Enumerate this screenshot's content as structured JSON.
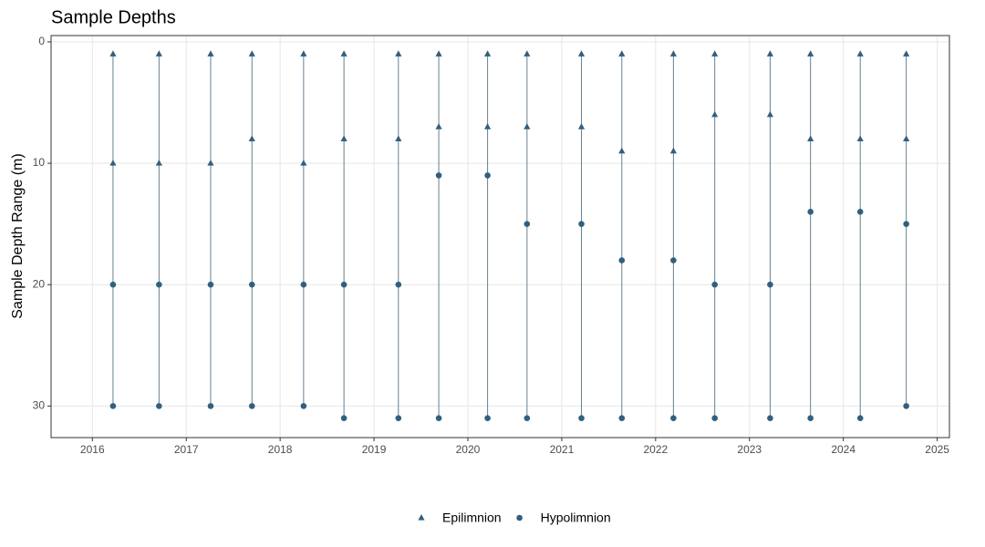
{
  "chart_data": {
    "type": "range-scatter",
    "title": "Sample Depths",
    "y_label": "Sample Depth Range (m)",
    "x": [
      2016.22,
      2016.22,
      2016.71,
      2016.71,
      2017.26,
      2017.26,
      2017.7,
      2017.7,
      2018.25,
      2018.25,
      2018.68,
      2018.68,
      2019.26,
      2019.26,
      2019.69,
      2019.69,
      2020.21,
      2020.21,
      2020.63,
      2020.63,
      2021.21,
      2021.21,
      2021.64,
      2021.64,
      2022.19,
      2022.19,
      2022.63,
      2022.63,
      2023.22,
      2023.22,
      2023.65,
      2023.65,
      2024.18,
      2024.18,
      2024.67,
      2024.67
    ],
    "series": [
      {
        "name": "Epilimnion",
        "color": "#31607f",
        "shape": "triangle",
        "values": [
          1,
          10,
          1,
          10,
          1,
          10,
          1,
          8,
          1,
          10,
          1,
          8,
          1,
          8,
          1,
          7,
          1,
          7,
          1,
          7,
          1,
          7,
          1,
          9,
          1,
          9,
          1,
          6,
          1,
          6,
          1,
          8,
          1,
          8,
          1,
          8
        ]
      },
      {
        "name": "Hypolimnion",
        "color": "#31607f",
        "shape": "circle",
        "values": [
          20,
          30,
          20,
          30,
          20,
          30,
          20,
          30,
          20,
          30,
          20,
          31,
          20,
          31,
          11,
          31,
          11,
          31,
          15,
          31,
          15,
          31,
          18,
          31,
          18,
          31,
          20,
          31,
          20,
          31,
          14,
          31,
          14,
          31,
          15,
          30
        ]
      }
    ],
    "xlim": [
      2015.56,
      2025.13
    ],
    "xticks": [
      2016,
      2017,
      2018,
      2019,
      2020,
      2021,
      2022,
      2023,
      2024,
      2025
    ],
    "ylim": [
      -0.52,
      32.6
    ],
    "yticks": [
      0,
      10,
      20,
      30
    ],
    "y_reversed": true,
    "grid": true,
    "legend": "bottom"
  }
}
